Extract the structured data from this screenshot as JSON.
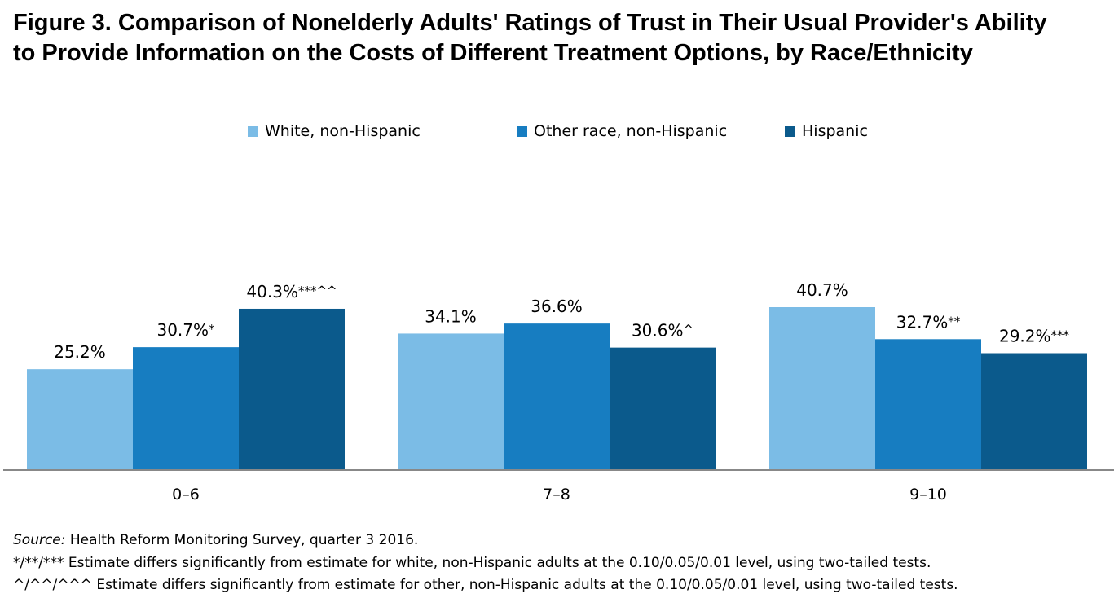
{
  "title": "Figure 3. Comparison of Nonelderly Adults' Ratings of Trust in Their Usual Provider's Ability to Provide Information on the Costs of Different Treatment Options, by Race/Ethnicity",
  "chart_data": {
    "type": "bar",
    "title": "Figure 3. Comparison of Nonelderly Adults' Ratings of Trust in Their Usual Provider's Ability to Provide Information on the Costs of Different Treatment Options, by Race/Ethnicity",
    "xlabel": "",
    "ylabel": "",
    "ylim": [
      0,
      42
    ],
    "grid": false,
    "legend_position": "top",
    "categories": [
      "0–6",
      "7–8",
      "9–10"
    ],
    "series": [
      {
        "name": "White, non-Hispanic",
        "color": "#7bbce6",
        "values": [
          25.2,
          34.1,
          40.7
        ],
        "labels": [
          "25.2%",
          "34.1%",
          "40.7%"
        ],
        "marks": [
          "",
          "",
          ""
        ]
      },
      {
        "name": "Other race, non-Hispanic",
        "color": "#177dc1",
        "values": [
          30.7,
          36.6,
          32.7
        ],
        "labels": [
          "30.7%",
          "36.6%",
          "32.7%"
        ],
        "marks": [
          "*",
          "",
          "**"
        ]
      },
      {
        "name": "Hispanic",
        "color": "#0b5a8c",
        "values": [
          40.3,
          30.6,
          29.2
        ],
        "labels": [
          "40.3%",
          "30.6%",
          "29.2%"
        ],
        "marks": [
          "***^^",
          "^",
          "***"
        ]
      }
    ]
  },
  "footnotes": {
    "source_label": "Source:",
    "source_text": " Health Reform Monitoring Survey, quarter 3 2016.",
    "note1": "*/**/*** Estimate differs significantly from estimate for white, non-Hispanic adults at the 0.10/0.05/0.01 level, using two-tailed tests.",
    "note2": "^/^^/^^^ Estimate differs significantly from estimate for other, non-Hispanic adults at the 0.10/0.05/0.01 level, using two-tailed tests."
  }
}
